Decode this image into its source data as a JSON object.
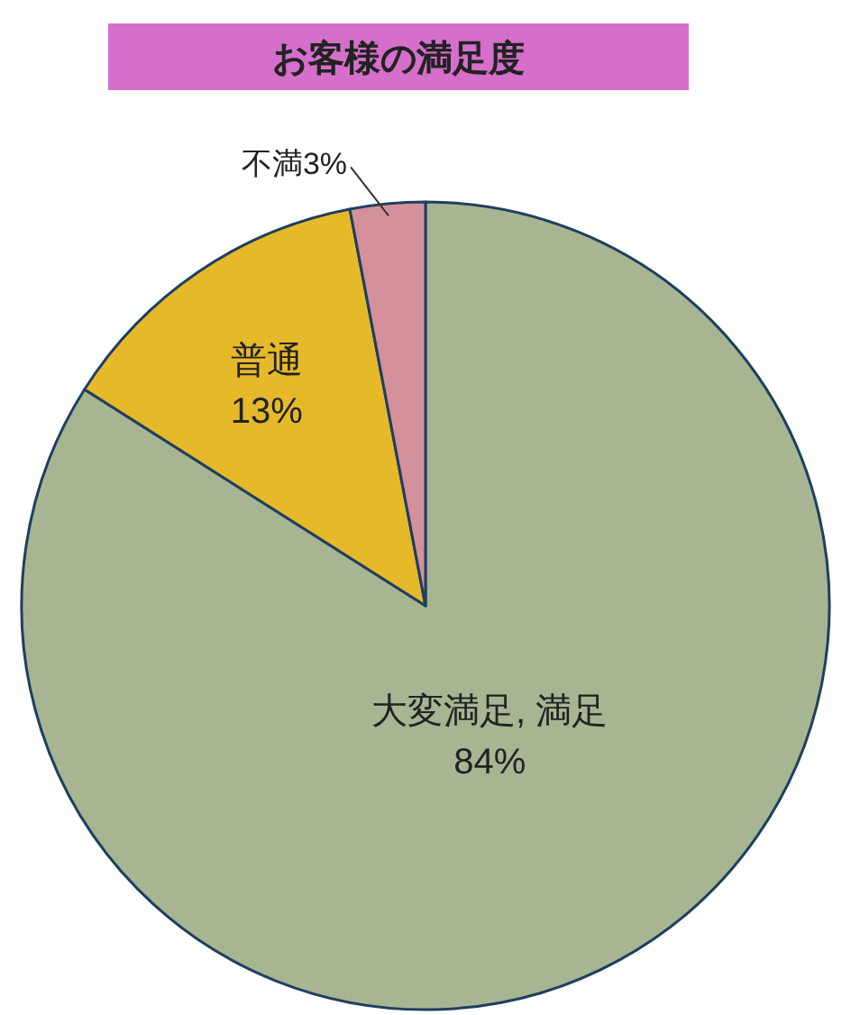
{
  "chart_data": {
    "type": "pie",
    "title": "お客様の満足度",
    "categories": [
      "大変満足, 満足",
      "普通",
      "不満"
    ],
    "values": [
      84,
      13,
      3
    ],
    "value_labels": [
      "84%",
      "13%",
      "3%"
    ],
    "colors": [
      "#a7b592",
      "#e6b92a",
      "#d4909b"
    ]
  }
}
